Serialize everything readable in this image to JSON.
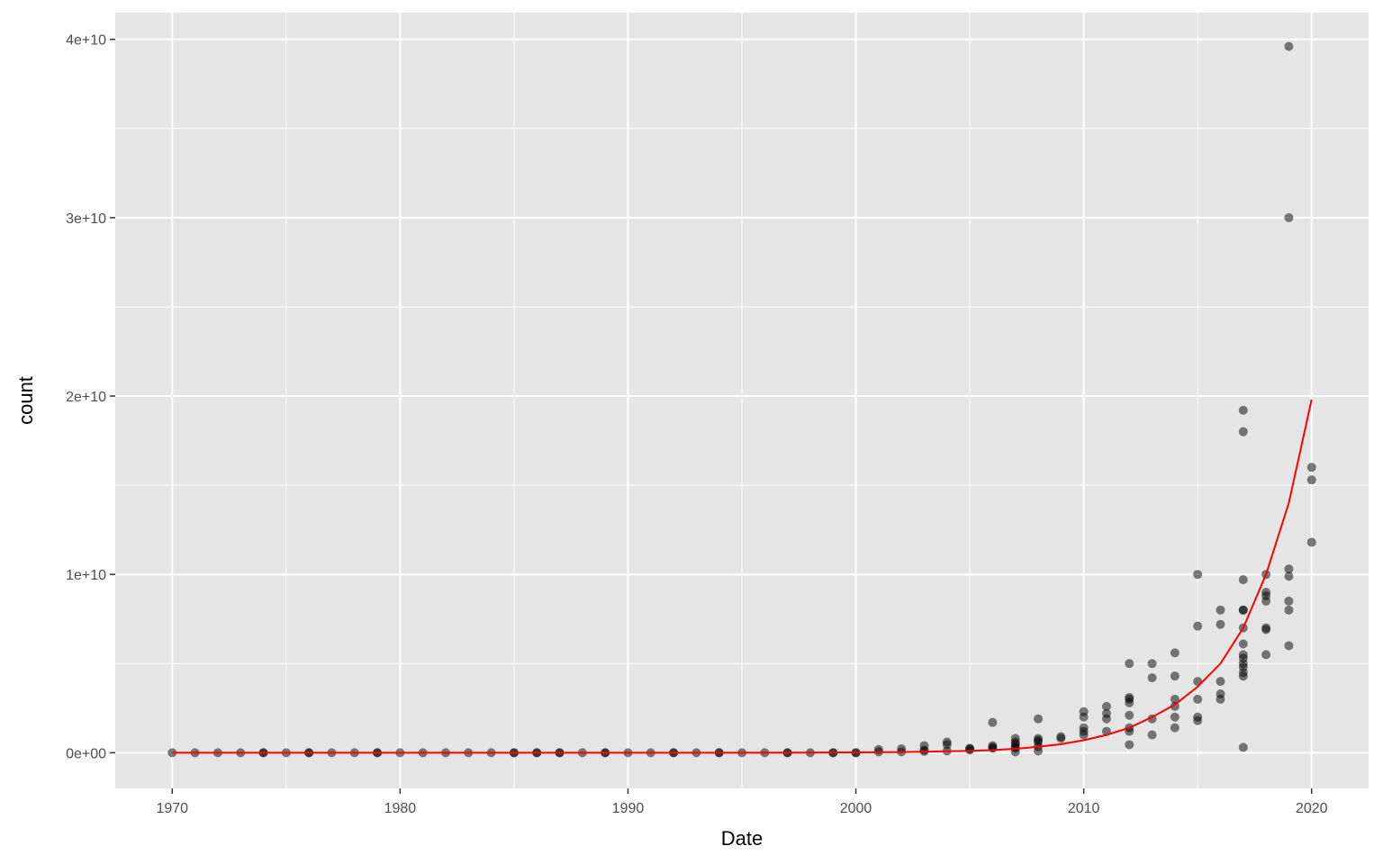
{
  "chart_data": {
    "type": "scatter",
    "title": "",
    "xlabel": "Date",
    "ylabel": "count",
    "xlim": [
      1967.5,
      2022.5
    ],
    "ylim": [
      -2000000000,
      41500000000
    ],
    "x_ticks": [
      1970,
      1980,
      1990,
      2000,
      2010,
      2020
    ],
    "x_tick_labels": [
      "1970",
      "1980",
      "1990",
      "2000",
      "2010",
      "2020"
    ],
    "y_ticks": [
      0,
      10000000000,
      20000000000,
      30000000000,
      40000000000
    ],
    "y_tick_labels": [
      "0e+00",
      "1e+10",
      "2e+10",
      "3e+10",
      "4e+10"
    ],
    "grid": true,
    "legend": "none",
    "colors": {
      "panel": "#e5e5e5",
      "grid": "#ffffff",
      "points": "#000000",
      "trend": "#ff0000"
    },
    "points": [
      [
        1970,
        0
      ],
      [
        1971,
        0
      ],
      [
        1972,
        0
      ],
      [
        1973,
        0
      ],
      [
        1974,
        0
      ],
      [
        1974,
        0
      ],
      [
        1975,
        0
      ],
      [
        1976,
        0
      ],
      [
        1976,
        0
      ],
      [
        1977,
        0
      ],
      [
        1978,
        0
      ],
      [
        1979,
        0
      ],
      [
        1979,
        0
      ],
      [
        1980,
        0
      ],
      [
        1981,
        0
      ],
      [
        1982,
        0
      ],
      [
        1983,
        0
      ],
      [
        1984,
        0
      ],
      [
        1985,
        0
      ],
      [
        1985,
        0
      ],
      [
        1986,
        0
      ],
      [
        1986,
        0
      ],
      [
        1987,
        0
      ],
      [
        1987,
        0
      ],
      [
        1988,
        0
      ],
      [
        1989,
        0
      ],
      [
        1989,
        0
      ],
      [
        1990,
        0
      ],
      [
        1991,
        0
      ],
      [
        1992,
        0
      ],
      [
        1992,
        0
      ],
      [
        1993,
        0
      ],
      [
        1994,
        0
      ],
      [
        1994,
        0
      ],
      [
        1995,
        0
      ],
      [
        1996,
        0
      ],
      [
        1997,
        0
      ],
      [
        1997,
        0
      ],
      [
        1998,
        0
      ],
      [
        1999,
        0
      ],
      [
        1999,
        0
      ],
      [
        2000,
        0
      ],
      [
        2000,
        0
      ],
      [
        2001,
        50000000
      ],
      [
        2001,
        180000000
      ],
      [
        2002,
        50000000
      ],
      [
        2002,
        220000000
      ],
      [
        2003,
        80000000
      ],
      [
        2003,
        150000000
      ],
      [
        2003,
        400000000
      ],
      [
        2004,
        100000000
      ],
      [
        2004,
        450000000
      ],
      [
        2004,
        600000000
      ],
      [
        2005,
        150000000
      ],
      [
        2005,
        220000000
      ],
      [
        2005,
        250000000
      ],
      [
        2006,
        250000000
      ],
      [
        2006,
        300000000
      ],
      [
        2006,
        400000000
      ],
      [
        2006,
        1700000000
      ],
      [
        2007,
        50000000
      ],
      [
        2007,
        250000000
      ],
      [
        2007,
        350000000
      ],
      [
        2007,
        500000000
      ],
      [
        2007,
        600000000
      ],
      [
        2007,
        800000000
      ],
      [
        2008,
        100000000
      ],
      [
        2008,
        350000000
      ],
      [
        2008,
        600000000
      ],
      [
        2008,
        700000000
      ],
      [
        2008,
        800000000
      ],
      [
        2008,
        1900000000
      ],
      [
        2009,
        800000000
      ],
      [
        2009,
        900000000
      ],
      [
        2010,
        1000000000
      ],
      [
        2010,
        1200000000
      ],
      [
        2010,
        1400000000
      ],
      [
        2010,
        2000000000
      ],
      [
        2010,
        2300000000
      ],
      [
        2011,
        1200000000
      ],
      [
        2011,
        1900000000
      ],
      [
        2011,
        2200000000
      ],
      [
        2011,
        2600000000
      ],
      [
        2012,
        450000000
      ],
      [
        2012,
        1200000000
      ],
      [
        2012,
        1400000000
      ],
      [
        2012,
        2100000000
      ],
      [
        2012,
        2800000000
      ],
      [
        2012,
        3000000000
      ],
      [
        2012,
        3100000000
      ],
      [
        2012,
        5000000000
      ],
      [
        2013,
        1000000000
      ],
      [
        2013,
        1900000000
      ],
      [
        2013,
        4200000000
      ],
      [
        2013,
        5000000000
      ],
      [
        2014,
        1400000000
      ],
      [
        2014,
        2000000000
      ],
      [
        2014,
        2600000000
      ],
      [
        2014,
        3000000000
      ],
      [
        2014,
        4300000000
      ],
      [
        2014,
        5600000000
      ],
      [
        2015,
        1800000000
      ],
      [
        2015,
        2000000000
      ],
      [
        2015,
        3000000000
      ],
      [
        2015,
        4000000000
      ],
      [
        2015,
        7100000000
      ],
      [
        2015,
        10000000000
      ],
      [
        2016,
        3000000000
      ],
      [
        2016,
        3300000000
      ],
      [
        2016,
        4000000000
      ],
      [
        2016,
        7200000000
      ],
      [
        2016,
        8000000000
      ],
      [
        2017,
        300000000
      ],
      [
        2017,
        4300000000
      ],
      [
        2017,
        4500000000
      ],
      [
        2017,
        4800000000
      ],
      [
        2017,
        5000000000
      ],
      [
        2017,
        5300000000
      ],
      [
        2017,
        5500000000
      ],
      [
        2017,
        6100000000
      ],
      [
        2017,
        7000000000
      ],
      [
        2017,
        8000000000
      ],
      [
        2017,
        8000000000
      ],
      [
        2017,
        9700000000
      ],
      [
        2017,
        18000000000
      ],
      [
        2017,
        19200000000
      ],
      [
        2018,
        5500000000
      ],
      [
        2018,
        6900000000
      ],
      [
        2018,
        7000000000
      ],
      [
        2018,
        8500000000
      ],
      [
        2018,
        8800000000
      ],
      [
        2018,
        9000000000
      ],
      [
        2018,
        10000000000
      ],
      [
        2019,
        6000000000
      ],
      [
        2019,
        8000000000
      ],
      [
        2019,
        8500000000
      ],
      [
        2019,
        9900000000
      ],
      [
        2019,
        10300000000
      ],
      [
        2019,
        30000000000
      ],
      [
        2019,
        39600000000
      ],
      [
        2020,
        11800000000
      ],
      [
        2020,
        15300000000
      ],
      [
        2020,
        16000000000
      ]
    ],
    "trend_line": {
      "x": [
        1970,
        1975,
        1980,
        1985,
        1990,
        1995,
        2000,
        2002,
        2004,
        2005,
        2006,
        2007,
        2008,
        2009,
        2010,
        2011,
        2012,
        2013,
        2014,
        2015,
        2016,
        2017,
        2018,
        2019,
        2020
      ],
      "y": [
        0,
        0,
        0,
        0,
        0,
        0,
        20000000,
        40000000,
        80000000,
        100000000,
        150000000,
        220000000,
        330000000,
        480000000,
        700000000,
        1000000000,
        1400000000,
        2000000000,
        2700000000,
        3700000000,
        5000000000,
        7000000000,
        10000000000,
        14000000000,
        19800000000
      ]
    }
  }
}
